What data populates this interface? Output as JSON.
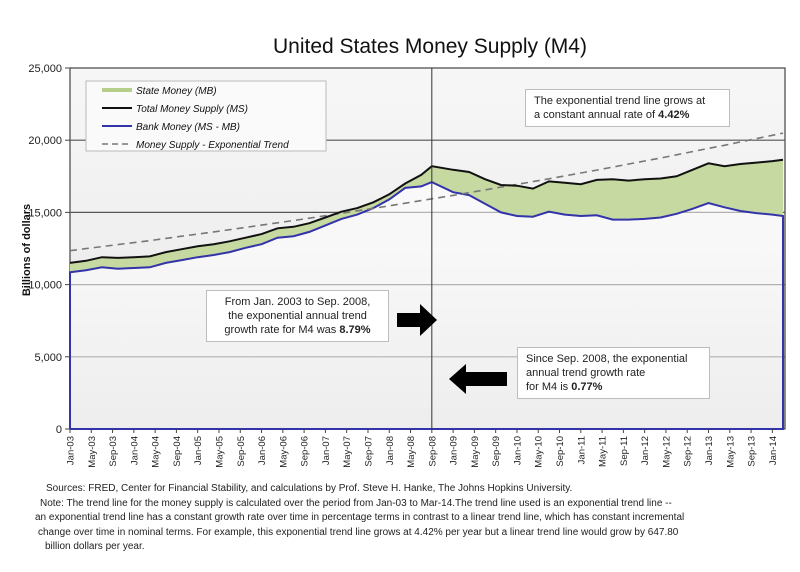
{
  "chart_data": {
    "type": "area",
    "title": "United States Money Supply (M4)",
    "xlabel": "",
    "ylabel": "Billions of dollars",
    "ylim": [
      0,
      25000
    ],
    "yticks": [
      "0",
      "5,000",
      "10,000",
      "15,000",
      "20,000",
      "25,000"
    ],
    "ytick_values": [
      0,
      5000,
      10000,
      15000,
      20000,
      25000
    ],
    "grid": true,
    "legend_position": "top-left",
    "x_tick_labels": [
      "Jan-03",
      "May-03",
      "Sep-03",
      "Jan-04",
      "May-04",
      "Sep-04",
      "Jan-05",
      "May-05",
      "Sep-05",
      "Jan-06",
      "May-06",
      "Sep-06",
      "Jan-07",
      "May-07",
      "Sep-07",
      "Jan-08",
      "May-08",
      "Sep-08",
      "Jan-09",
      "May-09",
      "Sep-09",
      "Jan-10",
      "May-10",
      "Sep-10",
      "Jan-11",
      "May-11",
      "Sep-11",
      "Jan-12",
      "May-12",
      "Sep-12",
      "Jan-13",
      "May-13",
      "Sep-13",
      "Jan-14"
    ],
    "x": [
      "Jan-03",
      "Apr-03",
      "Jul-03",
      "Oct-03",
      "Jan-04",
      "Apr-04",
      "Jul-04",
      "Oct-04",
      "Jan-05",
      "Apr-05",
      "Jul-05",
      "Oct-05",
      "Jan-06",
      "Apr-06",
      "Jul-06",
      "Oct-06",
      "Jan-07",
      "Apr-07",
      "Jul-07",
      "Oct-07",
      "Jan-08",
      "Apr-08",
      "Jul-08",
      "Sep-08",
      "Jan-09",
      "Apr-09",
      "Jul-09",
      "Oct-09",
      "Jan-10",
      "Apr-10",
      "Jul-10",
      "Oct-10",
      "Jan-11",
      "Apr-11",
      "Jul-11",
      "Oct-11",
      "Jan-12",
      "Apr-12",
      "Jul-12",
      "Oct-12",
      "Jan-13",
      "Apr-13",
      "Jul-13",
      "Oct-13",
      "Jan-14",
      "Mar-14"
    ],
    "series": [
      {
        "name": "Total Money Supply (MS)",
        "color": "#111111",
        "values": [
          11500,
          11650,
          11900,
          11850,
          11900,
          11950,
          12250,
          12450,
          12650,
          12800,
          13000,
          13250,
          13500,
          13900,
          14000,
          14250,
          14650,
          15050,
          15300,
          15700,
          16250,
          17000,
          17600,
          18200,
          17950,
          17800,
          17300,
          16900,
          16850,
          16650,
          17150,
          17050,
          16950,
          17250,
          17300,
          17200,
          17300,
          17350,
          17500,
          17950,
          18400,
          18200,
          18350,
          18450,
          18550,
          18650
        ]
      },
      {
        "name": "Bank Money (MS - MB)",
        "color": "#3333aa",
        "values": [
          10850,
          11000,
          11200,
          11100,
          11150,
          11200,
          11500,
          11700,
          11900,
          12050,
          12250,
          12550,
          12800,
          13250,
          13350,
          13650,
          14100,
          14550,
          14850,
          15300,
          15900,
          16700,
          16800,
          17100,
          16400,
          16200,
          15600,
          15000,
          14750,
          14700,
          15050,
          14850,
          14750,
          14800,
          14500,
          14500,
          14550,
          14650,
          14900,
          15250,
          15650,
          15350,
          15100,
          14950,
          14850,
          14750
        ]
      },
      {
        "name": "Money Supply - Exponential Trend",
        "color": "#888888",
        "style": "dashed",
        "values": [
          12350,
          12490,
          12630,
          12770,
          12910,
          13050,
          13200,
          13350,
          13500,
          13650,
          13800,
          13960,
          14120,
          14280,
          14440,
          14600,
          14770,
          14940,
          15110,
          15280,
          15460,
          15640,
          15820,
          15940,
          16180,
          16370,
          16560,
          16750,
          16940,
          17130,
          17330,
          17530,
          17730,
          17930,
          18140,
          18350,
          18560,
          18770,
          18990,
          19210,
          19430,
          19650,
          19880,
          20110,
          20340,
          20490
        ]
      },
      {
        "name": "State Money (MB)",
        "color": "#c6d9a0",
        "note": "filled band between Total Money Supply and Bank Money"
      }
    ],
    "legend": [
      {
        "label": "State Money (MB)",
        "kind": "band",
        "color": "#b5cf8a"
      },
      {
        "label": "Total Money Supply (MS)",
        "kind": "line",
        "color": "#111111"
      },
      {
        "label": "Bank Money (MS - MB)",
        "kind": "line",
        "color": "#3333aa"
      },
      {
        "label": "Money Supply - Exponential Trend",
        "kind": "dashed",
        "color": "#777777"
      }
    ],
    "vertical_marker": "Sep-08",
    "annotations": [
      {
        "id": "trend",
        "text": "The exponential trend line grows at a constant annual rate of ",
        "bold": "4.42%",
        "lines": [
          "The exponential trend line grows at",
          "a constant annual rate of "
        ]
      },
      {
        "id": "pre",
        "lines": [
          "From Jan. 2003 to Sep. 2008,",
          "the exponential annual trend",
          "growth rate for M4 was "
        ],
        "bold": "8.79%",
        "arrow": "right"
      },
      {
        "id": "post",
        "lines": [
          "Since Sep. 2008, the exponential",
          "annual trend growth rate",
          "for M4 is "
        ],
        "bold": "0.77%",
        "arrow": "left"
      }
    ]
  },
  "footer": {
    "lines": [
      "Sources: FRED, Center for Financial Stability, and calculations by Prof. Steve H. Hanke, The Johns Hopkins University.",
      "Note: The trend line for the money supply is calculated over the period from Jan-03 to Mar-14.The trend line used is an exponential trend line --",
      "an exponential trend line has a constant growth rate over time in percentage terms in contrast to a linear trend line, which has constant incremental",
      "change over time in nominal terms. For example, this exponential trend line grows at 4.42% per year but a linear trend line would grow by 647.80",
      "billion dollars per year."
    ]
  }
}
